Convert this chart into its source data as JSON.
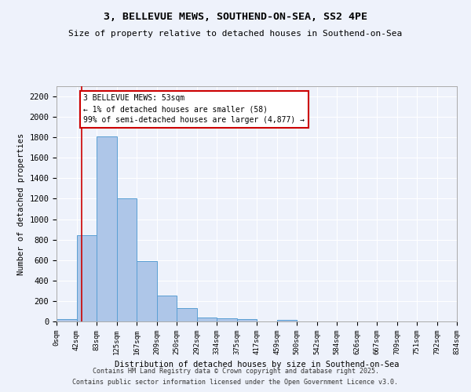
{
  "title_line1": "3, BELLEVUE MEWS, SOUTHEND-ON-SEA, SS2 4PE",
  "title_line2": "Size of property relative to detached houses in Southend-on-Sea",
  "xlabel": "Distribution of detached houses by size in Southend-on-Sea",
  "ylabel": "Number of detached properties",
  "bar_values": [
    25,
    840,
    1810,
    1200,
    590,
    255,
    130,
    42,
    30,
    20,
    0,
    15,
    0,
    0,
    0,
    0,
    0,
    0,
    0,
    0
  ],
  "bin_labels": [
    "0sqm",
    "42sqm",
    "83sqm",
    "125sqm",
    "167sqm",
    "209sqm",
    "250sqm",
    "292sqm",
    "334sqm",
    "375sqm",
    "417sqm",
    "459sqm",
    "500sqm",
    "542sqm",
    "584sqm",
    "626sqm",
    "667sqm",
    "709sqm",
    "751sqm",
    "792sqm",
    "834sqm"
  ],
  "bar_color": "#aec6e8",
  "bar_edge_color": "#5a9fd4",
  "vline_x": 1.27,
  "vline_color": "#cc0000",
  "annotation_text": "3 BELLEVUE MEWS: 53sqm\n← 1% of detached houses are smaller (58)\n99% of semi-detached houses are larger (4,877) →",
  "annotation_box_color": "#ffffff",
  "annotation_box_edge": "#cc0000",
  "ylim": [
    0,
    2300
  ],
  "yticks": [
    0,
    200,
    400,
    600,
    800,
    1000,
    1200,
    1400,
    1600,
    1800,
    2000,
    2200
  ],
  "bg_color": "#eef2fb",
  "grid_color": "#ffffff",
  "footer_line1": "Contains HM Land Registry data © Crown copyright and database right 2025.",
  "footer_line2": "Contains public sector information licensed under the Open Government Licence v3.0."
}
